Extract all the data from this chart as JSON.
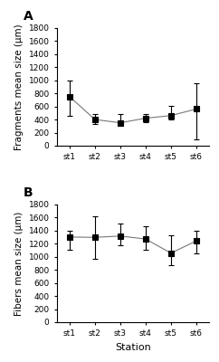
{
  "stations": [
    "st1",
    "st2",
    "st3",
    "st4",
    "st5",
    "st6"
  ],
  "panel_A": {
    "label": "A",
    "ylabel": "Fragments mean size (μm)",
    "means": [
      750,
      400,
      350,
      420,
      460,
      560
    ],
    "err_low": [
      300,
      70,
      45,
      60,
      60,
      460
    ],
    "err_high": [
      250,
      80,
      140,
      70,
      150,
      390
    ],
    "ylim": [
      0,
      1800
    ],
    "yticks": [
      0,
      200,
      400,
      600,
      800,
      1000,
      1200,
      1400,
      1600,
      1800
    ]
  },
  "panel_B": {
    "label": "B",
    "ylabel": "Fibers mean size (μm)",
    "means": [
      1300,
      1295,
      1315,
      1270,
      1055,
      1240
    ],
    "err_low": [
      200,
      330,
      145,
      170,
      185,
      190
    ],
    "err_high": [
      100,
      320,
      185,
      200,
      275,
      160
    ],
    "ylim": [
      0,
      1800
    ],
    "yticks": [
      0,
      200,
      400,
      600,
      800,
      1000,
      1200,
      1400,
      1600,
      1800
    ]
  },
  "xlabel": "Station",
  "line_color": "#777777",
  "marker": "s",
  "marker_size": 4,
  "marker_facecolor": "black",
  "capsize": 2.5,
  "linewidth": 0.8,
  "elinewidth": 0.8,
  "background_color": "#ffffff",
  "label_fontsize": 7.5,
  "tick_fontsize": 6.5,
  "panel_label_fontsize": 10,
  "xlabel_fontsize": 8
}
